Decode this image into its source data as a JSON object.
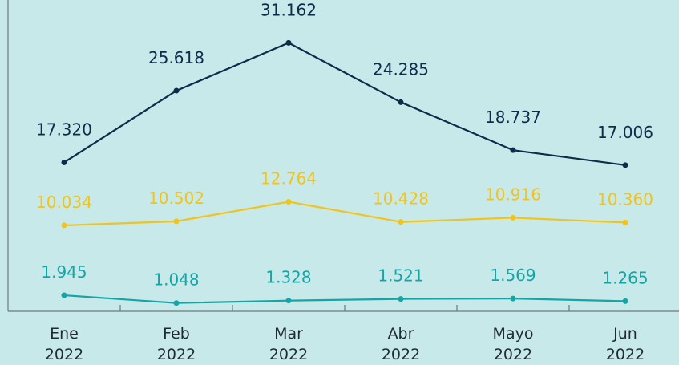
{
  "chart_data": {
    "type": "line",
    "categories": [
      "Ene 2022",
      "Feb 2022",
      "Mar 2022",
      "Abr 2022",
      "Mayo 2022",
      "Jun 2022"
    ],
    "ylim": [
      0,
      35000
    ],
    "series": [
      {
        "color": "#0d2c4a",
        "values": [
          17320,
          25618,
          31162,
          24285,
          18737,
          17006
        ],
        "value_labels": [
          "17.320",
          "25.618",
          "31.162",
          "24.285",
          "18.737",
          "17.006"
        ]
      },
      {
        "color": "#f2c318",
        "values": [
          10034,
          10502,
          12764,
          10428,
          10916,
          10360
        ],
        "value_labels": [
          "10.034",
          "10.502",
          "12.764",
          "10.428",
          "10.916",
          "10.360"
        ]
      },
      {
        "color": "#16a5a6",
        "values": [
          1945,
          1048,
          1328,
          1521,
          1569,
          1265
        ],
        "value_labels": [
          "1.945",
          "1.048",
          "1.328",
          "1.521",
          "1.569",
          "1.265"
        ]
      }
    ]
  }
}
